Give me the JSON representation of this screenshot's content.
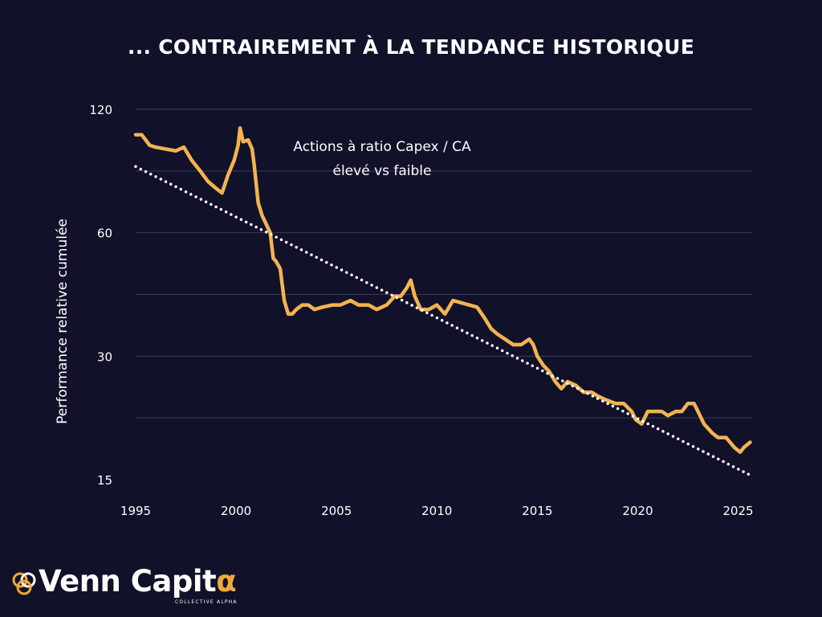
{
  "chart_data": {
    "type": "line",
    "title": "... CONTRAIREMENT À LA TENDANCE HISTORIQUE",
    "ylabel": "Performance relative cumulée",
    "xlabel": "",
    "y_scale": "log",
    "ylim": [
      15,
      120
    ],
    "xlim": [
      1995,
      2025.7
    ],
    "y_ticks": [
      120,
      60,
      30,
      15
    ],
    "y_tick_labels": [
      "120",
      "60",
      "30",
      "15"
    ],
    "x_ticks": [
      1995,
      2000,
      2005,
      2010,
      2015,
      2020,
      2025
    ],
    "x_tick_labels": [
      "1995",
      "2000",
      "2005",
      "2010",
      "2015",
      "2020",
      "2025"
    ],
    "grid": "horizontal",
    "annotation": "Actions à ratio Capex / CA\nélevé vs faible",
    "series": [
      {
        "color": "#f2b450",
        "style": "solid",
        "points": [
          [
            1995.0,
            104
          ],
          [
            1995.3,
            104
          ],
          [
            1995.7,
            98
          ],
          [
            1996.0,
            97
          ],
          [
            1996.5,
            96
          ],
          [
            1997.0,
            95
          ],
          [
            1997.4,
            97
          ],
          [
            1997.8,
            90
          ],
          [
            1998.2,
            85
          ],
          [
            1998.6,
            80
          ],
          [
            1999.0,
            77
          ],
          [
            1999.3,
            75
          ],
          [
            1999.6,
            83
          ],
          [
            1999.9,
            90
          ],
          [
            2000.1,
            98
          ],
          [
            2000.2,
            108
          ],
          [
            2000.35,
            100
          ],
          [
            2000.6,
            101
          ],
          [
            2000.8,
            96
          ],
          [
            2000.9,
            88
          ],
          [
            2001.1,
            71
          ],
          [
            2001.3,
            66
          ],
          [
            2001.5,
            63
          ],
          [
            2001.7,
            60
          ],
          [
            2001.85,
            52
          ],
          [
            2002.0,
            51
          ],
          [
            2002.2,
            49
          ],
          [
            2002.4,
            41
          ],
          [
            2002.6,
            38
          ],
          [
            2002.8,
            38
          ],
          [
            2003.0,
            39
          ],
          [
            2003.3,
            40
          ],
          [
            2003.6,
            40
          ],
          [
            2003.9,
            39
          ],
          [
            2004.3,
            39.5
          ],
          [
            2004.8,
            40
          ],
          [
            2005.2,
            40
          ],
          [
            2005.7,
            41
          ],
          [
            2006.1,
            40
          ],
          [
            2006.6,
            40
          ],
          [
            2007.0,
            39
          ],
          [
            2007.5,
            40
          ],
          [
            2007.9,
            42
          ],
          [
            2008.2,
            42
          ],
          [
            2008.5,
            44
          ],
          [
            2008.7,
            46
          ],
          [
            2008.9,
            42
          ],
          [
            2009.2,
            39
          ],
          [
            2009.6,
            39
          ],
          [
            2010.0,
            40
          ],
          [
            2010.4,
            38
          ],
          [
            2010.8,
            41
          ],
          [
            2011.2,
            40.5
          ],
          [
            2011.6,
            40
          ],
          [
            2012.0,
            39.5
          ],
          [
            2012.4,
            37
          ],
          [
            2012.7,
            35
          ],
          [
            2013.0,
            34
          ],
          [
            2013.4,
            33
          ],
          [
            2013.8,
            32
          ],
          [
            2014.2,
            32
          ],
          [
            2014.6,
            33
          ],
          [
            2014.8,
            32
          ],
          [
            2015.0,
            30
          ],
          [
            2015.3,
            28.5
          ],
          [
            2015.6,
            27.5
          ],
          [
            2015.9,
            26
          ],
          [
            2016.2,
            25
          ],
          [
            2016.5,
            26
          ],
          [
            2016.9,
            25.5
          ],
          [
            2017.3,
            24.5
          ],
          [
            2017.7,
            24.5
          ],
          [
            2018.0,
            24
          ],
          [
            2018.4,
            23.5
          ],
          [
            2018.9,
            23
          ],
          [
            2019.3,
            23
          ],
          [
            2019.7,
            22
          ],
          [
            2019.9,
            21
          ],
          [
            2020.2,
            20.5
          ],
          [
            2020.5,
            22
          ],
          [
            2020.8,
            22
          ],
          [
            2021.2,
            22
          ],
          [
            2021.5,
            21.5
          ],
          [
            2021.9,
            22
          ],
          [
            2022.2,
            22
          ],
          [
            2022.5,
            23
          ],
          [
            2022.8,
            23
          ],
          [
            2023.0,
            22
          ],
          [
            2023.3,
            20.5
          ],
          [
            2023.7,
            19.5
          ],
          [
            2024.0,
            19
          ],
          [
            2024.4,
            19
          ],
          [
            2024.8,
            18
          ],
          [
            2025.1,
            17.5
          ],
          [
            2025.3,
            18
          ],
          [
            2025.6,
            18.5
          ]
        ]
      },
      {
        "color": "#ffffff",
        "style": "dotted",
        "points": [
          [
            1995.0,
            87
          ],
          [
            2025.7,
            15.3
          ]
        ]
      }
    ]
  },
  "logo": {
    "name_main": "Venn Capit",
    "name_alpha": "α",
    "tagline": "COLLECTIVE ALPHA"
  }
}
